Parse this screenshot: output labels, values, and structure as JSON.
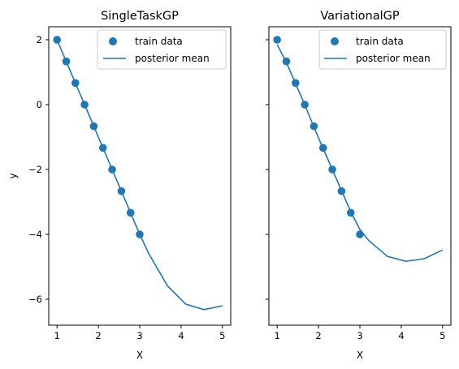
{
  "chart_data": [
    {
      "type": "scatter",
      "title": "SingleTaskGP",
      "xlabel": "X",
      "ylabel": "y",
      "xlim": [
        0.8,
        5.2
      ],
      "ylim": [
        -6.8,
        2.4
      ],
      "xticks": [
        "1",
        "2",
        "3",
        "4",
        "5"
      ],
      "yticks": [
        "2",
        "0",
        "−2",
        "−4",
        "−6"
      ],
      "grid": false,
      "legend_position": "top-right",
      "color": "#1f77b4",
      "series": [
        {
          "name": "train data",
          "kind": "scatter",
          "x": [
            1.0,
            1.222,
            1.444,
            1.667,
            1.889,
            2.111,
            2.333,
            2.556,
            2.778,
            3.0
          ],
          "y": [
            2.0,
            1.333,
            0.667,
            0.0,
            -0.667,
            -1.333,
            -2.0,
            -2.667,
            -3.333,
            -4.0
          ]
        },
        {
          "name": "posterior mean",
          "kind": "line",
          "x": [
            1.0,
            1.222,
            1.444,
            1.667,
            1.889,
            2.111,
            2.333,
            2.556,
            2.778,
            3.0,
            3.222,
            3.667,
            4.111,
            4.556,
            5.0
          ],
          "y": [
            2.0,
            1.333,
            0.667,
            0.0,
            -0.667,
            -1.333,
            -2.0,
            -2.667,
            -3.333,
            -4.0,
            -4.6,
            -5.58,
            -6.15,
            -6.32,
            -6.2
          ]
        }
      ]
    },
    {
      "type": "scatter",
      "title": "VariationalGP",
      "xlabel": "X",
      "ylabel": "",
      "xlim": [
        0.8,
        5.2
      ],
      "ylim": [
        -6.8,
        2.4
      ],
      "xticks": [
        "1",
        "2",
        "3",
        "4",
        "5"
      ],
      "yticks": [],
      "grid": false,
      "legend_position": "top-right",
      "color": "#1f77b4",
      "series": [
        {
          "name": "train data",
          "kind": "scatter",
          "x": [
            1.0,
            1.222,
            1.444,
            1.667,
            1.889,
            2.111,
            2.333,
            2.556,
            2.778,
            3.0
          ],
          "y": [
            2.0,
            1.333,
            0.667,
            0.0,
            -0.667,
            -1.333,
            -2.0,
            -2.667,
            -3.333,
            -4.0
          ]
        },
        {
          "name": "posterior mean",
          "kind": "line",
          "x": [
            1.0,
            1.222,
            1.444,
            1.667,
            1.889,
            2.111,
            2.333,
            2.556,
            2.778,
            3.0,
            3.222,
            3.667,
            4.111,
            4.556,
            5.0
          ],
          "y": [
            1.85,
            1.3,
            0.65,
            0.0,
            -0.7,
            -1.35,
            -2.0,
            -2.65,
            -3.3,
            -3.85,
            -4.2,
            -4.68,
            -4.83,
            -4.75,
            -4.48
          ]
        }
      ]
    }
  ]
}
